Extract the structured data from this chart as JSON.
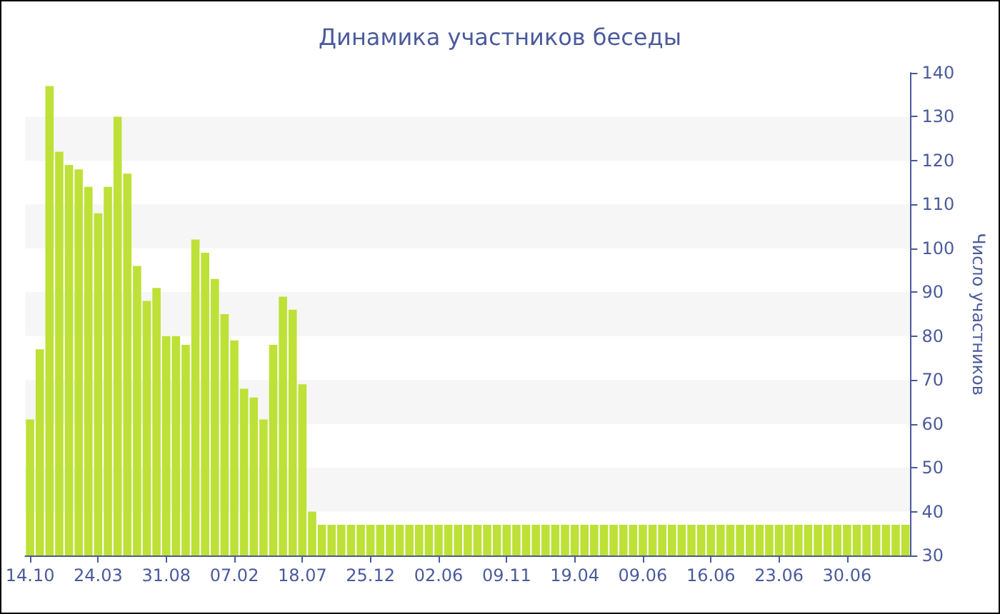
{
  "chart_data": {
    "type": "bar",
    "title": "Динамика участников беседы",
    "ylabel": "Число участников",
    "categories": [
      "14.10",
      null,
      null,
      null,
      null,
      null,
      null,
      "24.03",
      null,
      null,
      null,
      null,
      null,
      null,
      "31.08",
      null,
      null,
      null,
      null,
      null,
      null,
      "07.02",
      null,
      null,
      null,
      null,
      null,
      null,
      "18.07",
      null,
      null,
      null,
      null,
      null,
      null,
      "25.12",
      null,
      null,
      null,
      null,
      null,
      null,
      "02.06",
      null,
      null,
      null,
      null,
      null,
      null,
      "09.11",
      null,
      null,
      null,
      null,
      null,
      null,
      "19.04",
      null,
      null,
      null,
      null,
      null,
      null,
      "09.06",
      null,
      null,
      null,
      null,
      null,
      null,
      "16.06",
      null,
      null,
      null,
      null,
      null,
      null,
      "23.06",
      null,
      null,
      null,
      null,
      null,
      null,
      "30.06",
      null,
      null,
      null,
      null,
      null,
      null
    ],
    "values": [
      61,
      77,
      137,
      122,
      119,
      118,
      114,
      108,
      114,
      130,
      117,
      96,
      88,
      91,
      80,
      80,
      78,
      102,
      99,
      93,
      85,
      79,
      68,
      66,
      61,
      78,
      89,
      86,
      69,
      40,
      37,
      37,
      37,
      37,
      37,
      37,
      37,
      37,
      37,
      37,
      37,
      37,
      37,
      37,
      37,
      37,
      37,
      37,
      37,
      37,
      37,
      37,
      37,
      37,
      37,
      37,
      37,
      37,
      37,
      37,
      37,
      37,
      37,
      37,
      37,
      37,
      37,
      37,
      37,
      37,
      37,
      37,
      37,
      37,
      37,
      37,
      37,
      37,
      37,
      37,
      37,
      37,
      37,
      37,
      37,
      37,
      37,
      37,
      37,
      37,
      37
    ],
    "color": "#bde136",
    "ylim": [
      30,
      140
    ],
    "yticks": [
      30,
      40,
      50,
      60,
      70,
      80,
      90,
      100,
      110,
      120,
      130,
      140
    ],
    "bands": [
      {
        "axis": "y",
        "from": 40,
        "to": 50,
        "color": "#f6f6f6"
      },
      {
        "axis": "y",
        "from": 60,
        "to": 70,
        "color": "#f6f6f6"
      },
      {
        "axis": "y",
        "from": 80,
        "to": 90,
        "color": "#f6f6f6"
      },
      {
        "axis": "y",
        "from": 100,
        "to": 110,
        "color": "#f6f6f6"
      },
      {
        "axis": "y",
        "from": 120,
        "to": 130,
        "color": "#f6f6f6"
      }
    ]
  }
}
